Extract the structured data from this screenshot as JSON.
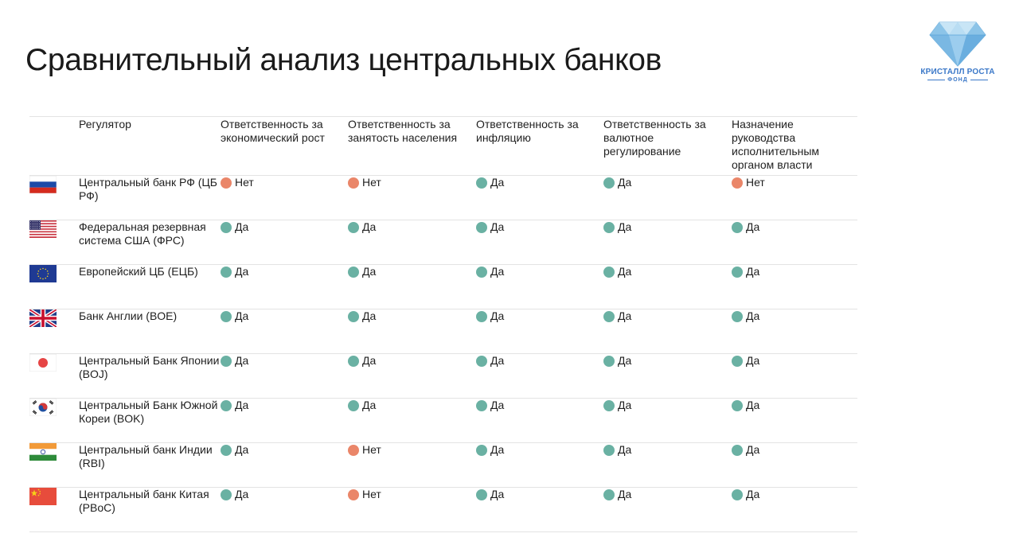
{
  "title": "Сравнительный анализ центральных банков",
  "logo": {
    "name": "КРИСТАЛЛ РОСТА",
    "sub": "ФОНД"
  },
  "colors": {
    "yes": "#6ab1a3",
    "no": "#ea8669"
  },
  "table": {
    "headers": [
      "Регулятор",
      "Ответственность за экономический рост",
      "Ответственность за занятость населения",
      "Ответственность за инфляцию",
      "Ответственность за валютное регулирование",
      "Назначение руководства исполнительным органом власти"
    ],
    "rows": [
      {
        "flag": "russia-flag",
        "regulator": "Центральный банк РФ (ЦБ РФ)",
        "values": [
          "Нет",
          "Нет",
          "Да",
          "Да",
          "Нет"
        ]
      },
      {
        "flag": "usa-flag",
        "regulator": "Федеральная резервная система США (ФРС)",
        "values": [
          "Да",
          "Да",
          "Да",
          "Да",
          "Да"
        ]
      },
      {
        "flag": "eu-flag",
        "regulator": "Европейский ЦБ (ЕЦБ)",
        "values": [
          "Да",
          "Да",
          "Да",
          "Да",
          "Да"
        ]
      },
      {
        "flag": "uk-flag",
        "regulator": "Банк Англии (BOE)",
        "values": [
          "Да",
          "Да",
          "Да",
          "Да",
          "Да"
        ]
      },
      {
        "flag": "japan-flag",
        "regulator": "Центральный Банк Японии (BOJ)",
        "values": [
          "Да",
          "Да",
          "Да",
          "Да",
          "Да"
        ]
      },
      {
        "flag": "south-korea-flag",
        "regulator": "Центральный Банк Южной Кореи (BOK)",
        "values": [
          "Да",
          "Да",
          "Да",
          "Да",
          "Да"
        ]
      },
      {
        "flag": "india-flag",
        "regulator": "Центральный банк Индии (RBI)",
        "values": [
          "Да",
          "Нет",
          "Да",
          "Да",
          "Да"
        ]
      },
      {
        "flag": "china-flag",
        "regulator": "Центральный банк Китая (PBoC)",
        "values": [
          "Да",
          "Нет",
          "Да",
          "Да",
          "Да"
        ]
      }
    ]
  }
}
